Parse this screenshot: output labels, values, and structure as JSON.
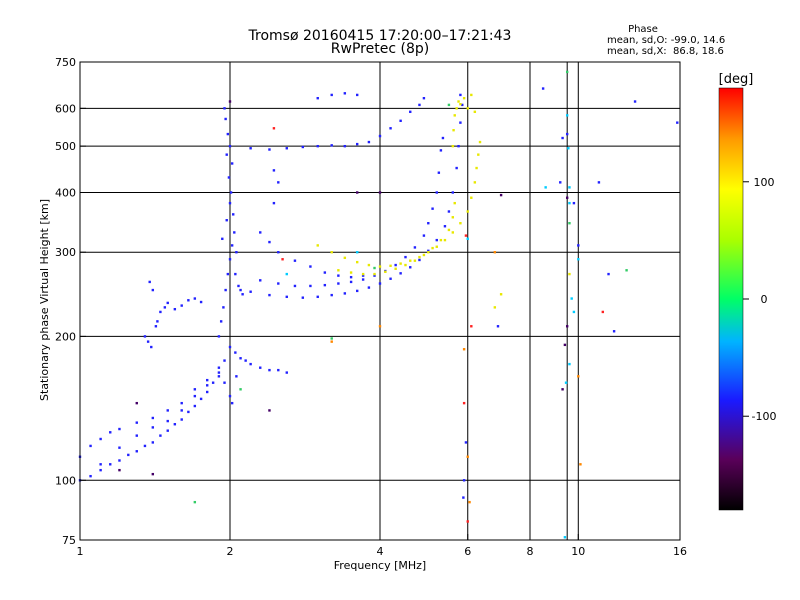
{
  "chart_data": {
    "type": "scatter",
    "title": "Tromsø 20160415 17:20:00–17:21:43",
    "subtitle": "RwPretec (8p)",
    "xlabel": "Frequency [MHz]",
    "ylabel": "Stationary phase Virtual Height [km]",
    "x_scale": "log",
    "y_scale": "log",
    "xlim": [
      1,
      16
    ],
    "ylim": [
      75,
      750
    ],
    "x_ticks": [
      1,
      2,
      4,
      6,
      8,
      10,
      16
    ],
    "y_ticks": [
      75,
      100,
      200,
      300,
      400,
      500,
      600,
      750
    ],
    "x_tick_labels": [
      "1",
      "2",
      "4",
      "6",
      "8",
      "10",
      "16"
    ],
    "y_tick_labels": [
      "75",
      "100",
      "200",
      "300",
      "400",
      "500",
      "600",
      "750"
    ],
    "x_gridlines": [
      2,
      4,
      6,
      8,
      9.5,
      10
    ],
    "y_gridlines": [
      100,
      200,
      300,
      400,
      500,
      600
    ],
    "grid": true,
    "stats": {
      "heading": "Phase",
      "line_o": "mean, sd,O: -99.0, 14.6",
      "line_x": "mean, sd,X:  86.8, 18.6"
    },
    "colorbar": {
      "label": "[deg]",
      "ticks": [
        "100",
        "0",
        "-100"
      ],
      "tick_values": [
        100,
        0,
        -100
      ],
      "range": [
        -180,
        180
      ]
    },
    "series": [
      {
        "color": "#2222ff",
        "points": [
          [
            1.0,
            100
          ],
          [
            1.05,
            102
          ],
          [
            1.1,
            105
          ],
          [
            1.15,
            108
          ],
          [
            1.2,
            110
          ],
          [
            1.25,
            113
          ],
          [
            1.3,
            115
          ],
          [
            1.35,
            118
          ],
          [
            1.4,
            120
          ],
          [
            1.45,
            124
          ],
          [
            1.5,
            127
          ],
          [
            1.55,
            131
          ],
          [
            1.6,
            134
          ],
          [
            1.65,
            139
          ],
          [
            1.7,
            143
          ],
          [
            1.75,
            148
          ],
          [
            1.8,
            153
          ],
          [
            1.85,
            160
          ],
          [
            1.9,
            168
          ],
          [
            1.95,
            178
          ],
          [
            1.0,
            112
          ],
          [
            1.05,
            118
          ],
          [
            1.1,
            122
          ],
          [
            1.15,
            126
          ],
          [
            1.2,
            128
          ],
          [
            1.3,
            132
          ],
          [
            1.4,
            135
          ],
          [
            1.5,
            140
          ],
          [
            1.6,
            145
          ],
          [
            1.7,
            150
          ],
          [
            1.8,
            158
          ],
          [
            1.9,
            165
          ],
          [
            1.1,
            108
          ],
          [
            1.2,
            117
          ],
          [
            1.3,
            124
          ],
          [
            1.4,
            129
          ],
          [
            1.5,
            133
          ],
          [
            1.6,
            140
          ],
          [
            1.7,
            155
          ],
          [
            1.8,
            162
          ],
          [
            1.9,
            172
          ],
          [
            1.35,
            200
          ],
          [
            1.37,
            195
          ],
          [
            1.39,
            190
          ],
          [
            1.42,
            210
          ],
          [
            1.45,
            225
          ],
          [
            1.48,
            230
          ],
          [
            1.5,
            235
          ],
          [
            1.55,
            228
          ],
          [
            1.6,
            232
          ],
          [
            1.65,
            238
          ],
          [
            1.7,
            240
          ],
          [
            1.75,
            236
          ],
          [
            1.4,
            250
          ],
          [
            1.38,
            260
          ],
          [
            1.43,
            215
          ],
          [
            1.9,
            200
          ],
          [
            1.92,
            215
          ],
          [
            1.94,
            230
          ],
          [
            1.96,
            250
          ],
          [
            1.98,
            270
          ],
          [
            2.0,
            290
          ],
          [
            2.02,
            310
          ],
          [
            2.04,
            330
          ],
          [
            1.97,
            350
          ],
          [
            2.0,
            380
          ],
          [
            2.01,
            400
          ],
          [
            1.99,
            430
          ],
          [
            2.02,
            460
          ],
          [
            2.0,
            500
          ],
          [
            1.98,
            530
          ],
          [
            1.96,
            570
          ],
          [
            1.95,
            600
          ],
          [
            1.97,
            480
          ],
          [
            2.03,
            360
          ],
          [
            1.93,
            320
          ],
          [
            2.06,
            300
          ],
          [
            2.05,
            270
          ],
          [
            2.08,
            255
          ],
          [
            2.1,
            250
          ],
          [
            2.12,
            245
          ],
          [
            2.0,
            190
          ],
          [
            2.05,
            185
          ],
          [
            2.1,
            180
          ],
          [
            2.15,
            178
          ],
          [
            2.2,
            175
          ],
          [
            2.3,
            172
          ],
          [
            2.4,
            170
          ],
          [
            2.5,
            170
          ],
          [
            2.6,
            168
          ],
          [
            1.95,
            160
          ],
          [
            2.0,
            150
          ],
          [
            2.02,
            145
          ],
          [
            2.06,
            165
          ],
          [
            2.2,
            248
          ],
          [
            2.4,
            244
          ],
          [
            2.6,
            242
          ],
          [
            2.8,
            241
          ],
          [
            3.0,
            242
          ],
          [
            3.2,
            244
          ],
          [
            3.4,
            246
          ],
          [
            3.6,
            249
          ],
          [
            3.8,
            253
          ],
          [
            4.0,
            258
          ],
          [
            4.2,
            264
          ],
          [
            4.4,
            271
          ],
          [
            4.6,
            279
          ],
          [
            4.8,
            289
          ],
          [
            5.0,
            302
          ],
          [
            5.2,
            318
          ],
          [
            5.4,
            340
          ],
          [
            5.5,
            365
          ],
          [
            5.6,
            400
          ],
          [
            5.7,
            450
          ],
          [
            5.75,
            500
          ],
          [
            5.8,
            560
          ],
          [
            5.85,
            610
          ],
          [
            5.8,
            640
          ],
          [
            2.3,
            262
          ],
          [
            2.5,
            258
          ],
          [
            2.7,
            255
          ],
          [
            2.9,
            255
          ],
          [
            3.1,
            256
          ],
          [
            3.3,
            258
          ],
          [
            3.5,
            260
          ],
          [
            3.7,
            263
          ],
          [
            3.9,
            268
          ],
          [
            4.1,
            274
          ],
          [
            4.3,
            282
          ],
          [
            4.5,
            293
          ],
          [
            4.7,
            307
          ],
          [
            4.9,
            325
          ],
          [
            5.0,
            345
          ],
          [
            5.1,
            370
          ],
          [
            5.2,
            400
          ],
          [
            5.25,
            440
          ],
          [
            5.3,
            490
          ],
          [
            5.35,
            520
          ],
          [
            2.2,
            495
          ],
          [
            2.4,
            492
          ],
          [
            2.6,
            495
          ],
          [
            2.8,
            498
          ],
          [
            3.0,
            500
          ],
          [
            3.2,
            502
          ],
          [
            3.4,
            500
          ],
          [
            3.6,
            505
          ],
          [
            3.8,
            510
          ],
          [
            4.0,
            525
          ],
          [
            4.2,
            545
          ],
          [
            4.4,
            565
          ],
          [
            4.6,
            590
          ],
          [
            4.8,
            610
          ],
          [
            4.9,
            630
          ],
          [
            2.5,
            300
          ],
          [
            2.7,
            288
          ],
          [
            2.9,
            280
          ],
          [
            3.1,
            272
          ],
          [
            3.3,
            268
          ],
          [
            3.5,
            266
          ],
          [
            3.7,
            268
          ],
          [
            2.4,
            315
          ],
          [
            2.3,
            330
          ],
          [
            2.45,
            380
          ],
          [
            2.5,
            420
          ],
          [
            2.45,
            445
          ],
          [
            3.2,
            640
          ],
          [
            3.4,
            645
          ],
          [
            3.6,
            640
          ],
          [
            3.0,
            630
          ],
          [
            5.9,
            100
          ],
          [
            5.88,
            92
          ],
          [
            5.95,
            120
          ],
          [
            6.9,
            210
          ],
          [
            8.5,
            660
          ],
          [
            9.2,
            420
          ],
          [
            9.3,
            520
          ],
          [
            9.5,
            530
          ],
          [
            9.8,
            380
          ],
          [
            10.0,
            310
          ],
          [
            11.0,
            420
          ],
          [
            11.5,
            270
          ],
          [
            11.8,
            205
          ],
          [
            13.0,
            620
          ],
          [
            15.8,
            560
          ]
        ]
      },
      {
        "color": "#e8e800",
        "points": [
          [
            3.0,
            310
          ],
          [
            3.2,
            300
          ],
          [
            3.4,
            292
          ],
          [
            3.6,
            286
          ],
          [
            3.8,
            282
          ],
          [
            4.0,
            280
          ],
          [
            4.2,
            281
          ],
          [
            4.4,
            284
          ],
          [
            4.6,
            288
          ],
          [
            4.8,
            293
          ],
          [
            5.0,
            300
          ],
          [
            5.2,
            308
          ],
          [
            5.4,
            318
          ],
          [
            5.6,
            330
          ],
          [
            5.8,
            345
          ],
          [
            6.0,
            365
          ],
          [
            6.1,
            390
          ],
          [
            6.2,
            420
          ],
          [
            6.25,
            450
          ],
          [
            6.3,
            480
          ],
          [
            6.35,
            510
          ],
          [
            3.3,
            275
          ],
          [
            3.5,
            272
          ],
          [
            3.7,
            270
          ],
          [
            3.9,
            270
          ],
          [
            4.1,
            273
          ],
          [
            4.3,
            277
          ],
          [
            4.5,
            282
          ],
          [
            4.7,
            288
          ],
          [
            4.9,
            296
          ],
          [
            5.1,
            306
          ],
          [
            5.3,
            318
          ],
          [
            5.5,
            334
          ],
          [
            5.6,
            355
          ],
          [
            5.65,
            380
          ],
          [
            5.6,
            500
          ],
          [
            5.62,
            540
          ],
          [
            5.65,
            580
          ],
          [
            5.7,
            600
          ],
          [
            5.75,
            620
          ],
          [
            5.8,
            612
          ],
          [
            6.0,
            600
          ],
          [
            6.2,
            590
          ],
          [
            6.1,
            640
          ],
          [
            5.9,
            630
          ],
          [
            6.8,
            230
          ],
          [
            7.0,
            245
          ],
          [
            9.6,
            270
          ]
        ]
      },
      {
        "color": "#ff2222",
        "points": [
          [
            2.45,
            545
          ],
          [
            2.55,
            290
          ],
          [
            5.9,
            145
          ],
          [
            6.0,
            82
          ],
          [
            6.1,
            210
          ],
          [
            5.95,
            325
          ],
          [
            11.2,
            225
          ]
        ]
      },
      {
        "color": "#ff8800",
        "points": [
          [
            3.2,
            195
          ],
          [
            4.0,
            210
          ],
          [
            5.9,
            188
          ],
          [
            6.0,
            112
          ],
          [
            6.05,
            90
          ],
          [
            6.8,
            300
          ],
          [
            10.0,
            165
          ],
          [
            10.1,
            108
          ]
        ]
      },
      {
        "color": "#33cc66",
        "points": [
          [
            1.7,
            90
          ],
          [
            2.1,
            155
          ],
          [
            3.2,
            198
          ],
          [
            3.9,
            278
          ],
          [
            5.5,
            610
          ],
          [
            9.5,
            715
          ],
          [
            9.6,
            345
          ],
          [
            12.5,
            275
          ]
        ]
      },
      {
        "color": "#00ccff",
        "points": [
          [
            2.6,
            270
          ],
          [
            3.6,
            300
          ],
          [
            6.0,
            320
          ],
          [
            8.6,
            410
          ],
          [
            9.5,
            580
          ],
          [
            9.55,
            495
          ],
          [
            9.6,
            380
          ],
          [
            9.7,
            240
          ],
          [
            9.8,
            225
          ],
          [
            9.6,
            175
          ],
          [
            9.4,
            76
          ],
          [
            9.45,
            160
          ],
          [
            10.0,
            290
          ],
          [
            9.6,
            410
          ]
        ]
      },
      {
        "color": "#440066",
        "points": [
          [
            1.2,
            105
          ],
          [
            1.4,
            103
          ],
          [
            1.3,
            145
          ],
          [
            2.4,
            140
          ],
          [
            2.0,
            620
          ],
          [
            3.6,
            400
          ],
          [
            4.0,
            400
          ],
          [
            7.0,
            395
          ],
          [
            9.5,
            390
          ],
          [
            9.5,
            210
          ],
          [
            9.4,
            192
          ],
          [
            9.3,
            155
          ]
        ]
      }
    ]
  }
}
